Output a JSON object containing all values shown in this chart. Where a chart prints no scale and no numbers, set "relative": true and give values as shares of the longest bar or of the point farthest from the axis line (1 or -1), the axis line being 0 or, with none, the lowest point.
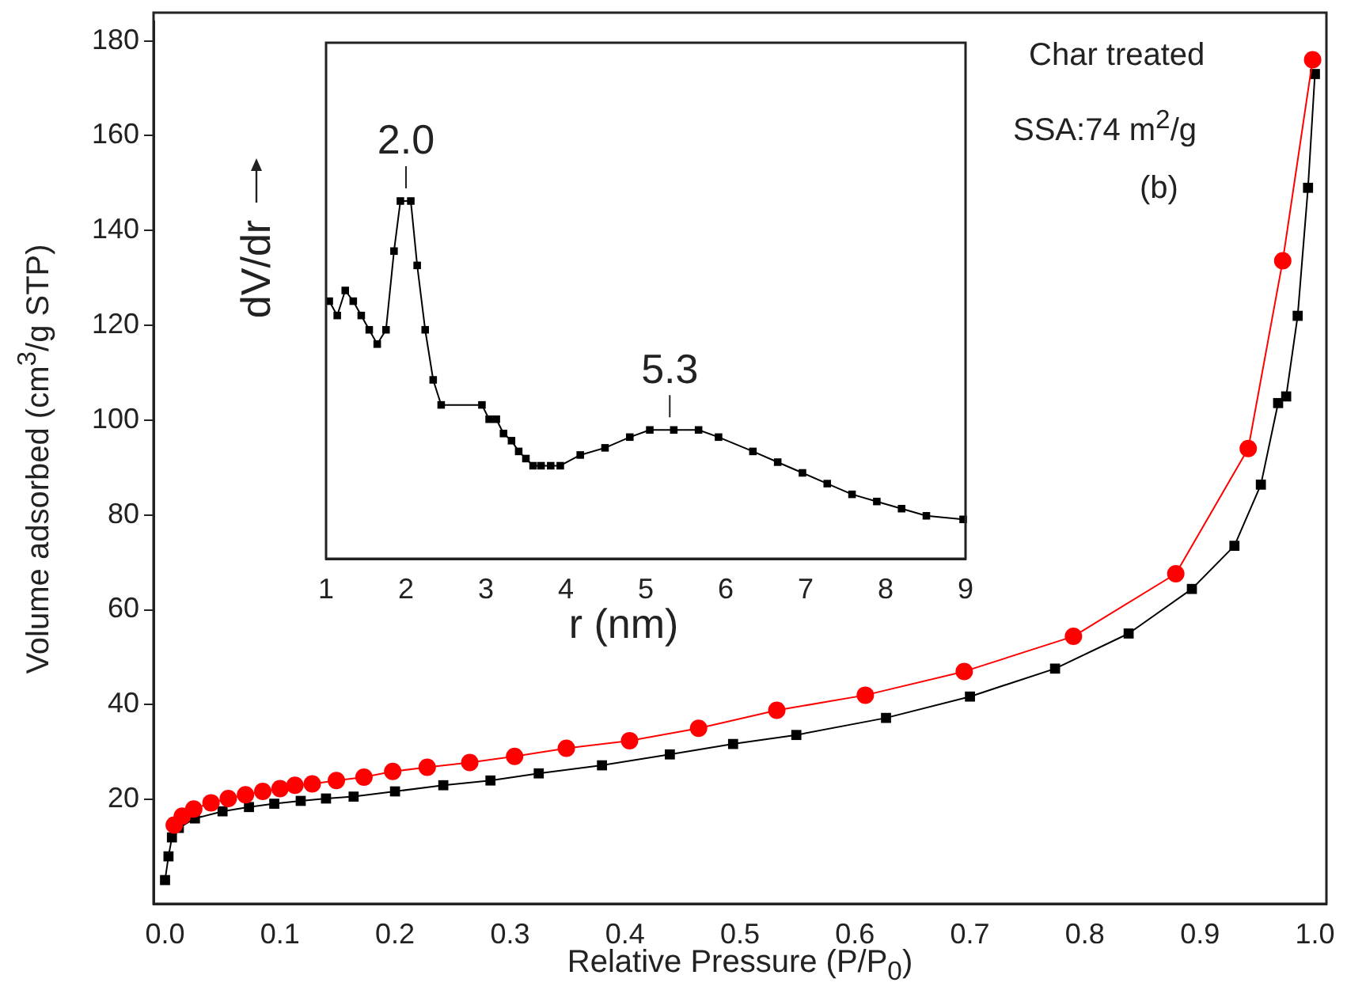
{
  "chart_data": [
    {
      "type": "line",
      "xlabel": "Relative Pressure (P/P$_{0}$)",
      "ylabel": "Volume adsorbed (cm$^{3}$/g STP)",
      "xlim": [
        -0.01,
        1.01
      ],
      "ylim": [
        -2,
        184
      ],
      "xticks": [
        {
          "value": 0,
          "label": "0.0"
        },
        0.1,
        0.2,
        0.3,
        0.4,
        0.5,
        0.6,
        0.7,
        0.8,
        0.9,
        {
          "value": 1,
          "label": "1.0"
        }
      ],
      "yticks": [
        20,
        40,
        60,
        80,
        100,
        120,
        140,
        160,
        180
      ],
      "grid": false,
      "legend": false,
      "annotations": [
        "Char treated",
        "SSA:74 m$^{2}$/g",
        "(b)"
      ],
      "series": [
        {
          "color": "#000000",
          "marker": "square",
          "x": [
            0.0,
            0.003,
            0.006,
            0.012,
            0.026,
            0.05,
            0.073,
            0.095,
            0.118,
            0.14,
            0.164,
            0.2,
            0.242,
            0.283,
            0.325,
            0.38,
            0.439,
            0.494,
            0.549,
            0.627,
            0.7,
            0.774,
            0.838,
            0.893,
            0.93,
            0.953,
            0.968,
            0.975,
            0.985,
            0.994,
            1.0
          ],
          "values": [
            3,
            8,
            12,
            14,
            16,
            17.5,
            18.4,
            19.1,
            19.7,
            20.2,
            20.6,
            21.7,
            23,
            24,
            25.5,
            27.2,
            29.5,
            31.7,
            33.6,
            37.2,
            41.7,
            47.6,
            55,
            64.4,
            73.5,
            86.4,
            103.6,
            105,
            122,
            149,
            173
          ]
        },
        {
          "color": "#ff0000",
          "marker": "circle",
          "x": [
            0.008,
            0.015,
            0.025,
            0.04,
            0.055,
            0.07,
            0.085,
            0.1,
            0.113,
            0.128,
            0.149,
            0.173,
            0.198,
            0.228,
            0.265,
            0.304,
            0.349,
            0.404,
            0.464,
            0.532,
            0.609,
            0.695,
            0.79,
            0.879,
            0.942,
            0.972,
            0.998
          ],
          "values": [
            14.6,
            16.5,
            18,
            19.3,
            20.2,
            21,
            21.7,
            22.3,
            23,
            23.3,
            24,
            24.7,
            25.9,
            26.8,
            27.8,
            29.1,
            30.8,
            32.4,
            35,
            38.8,
            42,
            47,
            54.4,
            67.6,
            94,
            133.6,
            176
          ]
        }
      ]
    },
    {
      "type": "line",
      "xlabel": "r (nm)",
      "ylabel": "dV/dr",
      "relative": true,
      "xlim": [
        1,
        9
      ],
      "xticks": [
        1,
        2,
        3,
        4,
        5,
        6,
        7,
        8,
        9
      ],
      "grid": false,
      "legend": false,
      "marker": "square",
      "annotations": [
        {
          "text": "2.0",
          "x": 2.0,
          "y": 1
        },
        {
          "text": "5.3",
          "x": 5.3,
          "y": 0.36
        }
      ],
      "series": [
        {
          "color": "#000000",
          "x": [
            1.04,
            1.14,
            1.24,
            1.34,
            1.44,
            1.54,
            1.64,
            1.75,
            1.85,
            1.93,
            2.06,
            2.14,
            2.24,
            2.34,
            2.44,
            2.95,
            3.04,
            3.13,
            3.22,
            3.32,
            3.41,
            3.5,
            3.59,
            3.69,
            3.81,
            3.93,
            4.18,
            4.49,
            4.8,
            5.05,
            5.35,
            5.66,
            5.91,
            6.34,
            6.65,
            6.96,
            7.27,
            7.58,
            7.89,
            8.2,
            8.51,
            8.97
          ],
          "values": [
            0.72,
            0.68,
            0.75,
            0.72,
            0.68,
            0.64,
            0.6,
            0.64,
            0.86,
            1,
            1,
            0.82,
            0.64,
            0.5,
            0.43,
            0.43,
            0.39,
            0.39,
            0.35,
            0.33,
            0.3,
            0.28,
            0.26,
            0.26,
            0.26,
            0.26,
            0.29,
            0.31,
            0.34,
            0.36,
            0.36,
            0.36,
            0.34,
            0.3,
            0.27,
            0.24,
            0.21,
            0.18,
            0.16,
            0.14,
            0.12,
            0.11
          ]
        }
      ]
    }
  ]
}
